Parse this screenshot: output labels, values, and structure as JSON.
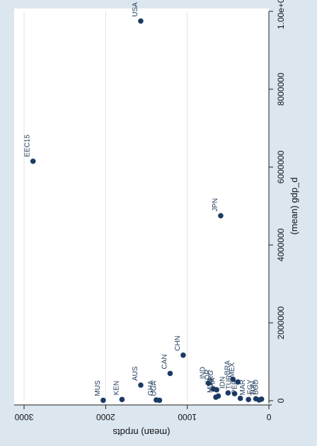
{
  "chart_data": {
    "type": "scatter",
    "title": "",
    "xlabel": "(mean) gdp_d",
    "ylabel": "(mean) nrpdts",
    "xlim": [
      0,
      10000000
    ],
    "ylim": [
      0,
      3000
    ],
    "x_ticks": [
      0,
      2000000,
      4000000,
      6000000,
      8000000,
      10000000
    ],
    "x_tick_labels": [
      "0",
      "2000000",
      "4000000",
      "6000000",
      "8000000",
      "1.00e+07"
    ],
    "y_ticks": [
      0,
      1000,
      2000,
      3000
    ],
    "y_tick_labels": [
      "0",
      "1000",
      "2000",
      "3000"
    ],
    "grid": true,
    "orientation": "rotated-90-clockwise",
    "colors": {
      "marker": "#1a3a63",
      "plot_bg": "#ffffff",
      "outer_bg": "#dbe6ef",
      "grid": "#e2e2e2"
    },
    "points": [
      {
        "label": "USA",
        "x": 9750000,
        "y": 1570
      },
      {
        "label": "EEC15",
        "x": 6150000,
        "y": 2890
      },
      {
        "label": "JPN",
        "x": 4750000,
        "y": 590
      },
      {
        "label": "CHN",
        "x": 1170000,
        "y": 1050
      },
      {
        "label": "CAN",
        "x": 700000,
        "y": 1210
      },
      {
        "label": "AUS",
        "x": 400000,
        "y": 1570
      },
      {
        "label": "KEN",
        "x": 30000,
        "y": 1800
      },
      {
        "label": "MUS",
        "x": 10000,
        "y": 2030
      },
      {
        "label": "GHA",
        "x": 20000,
        "y": 1380
      },
      {
        "label": "UGA",
        "x": 10000,
        "y": 1340
      },
      {
        "label": "IND",
        "x": 450000,
        "y": 740
      },
      {
        "label": "KOR",
        "x": 300000,
        "y": 680
      },
      {
        "label": "ARG",
        "x": 280000,
        "y": 640
      },
      {
        "label": "THA",
        "x": 120000,
        "y": 620
      },
      {
        "label": "MYS",
        "x": 90000,
        "y": 650
      },
      {
        "label": "BRA",
        "x": 550000,
        "y": 440
      },
      {
        "label": "MEX",
        "x": 480000,
        "y": 380
      },
      {
        "label": "IDN",
        "x": 200000,
        "y": 500
      },
      {
        "label": "TUR",
        "x": 180000,
        "y": 420
      },
      {
        "label": "PER",
        "x": 60000,
        "y": 350
      },
      {
        "label": "MAR",
        "x": 30000,
        "y": 250
      },
      {
        "label": "EGY",
        "x": 50000,
        "y": 160
      },
      {
        "label": "TUN",
        "x": 20000,
        "y": 120
      },
      {
        "label": "BGD",
        "x": 40000,
        "y": 90
      }
    ]
  }
}
